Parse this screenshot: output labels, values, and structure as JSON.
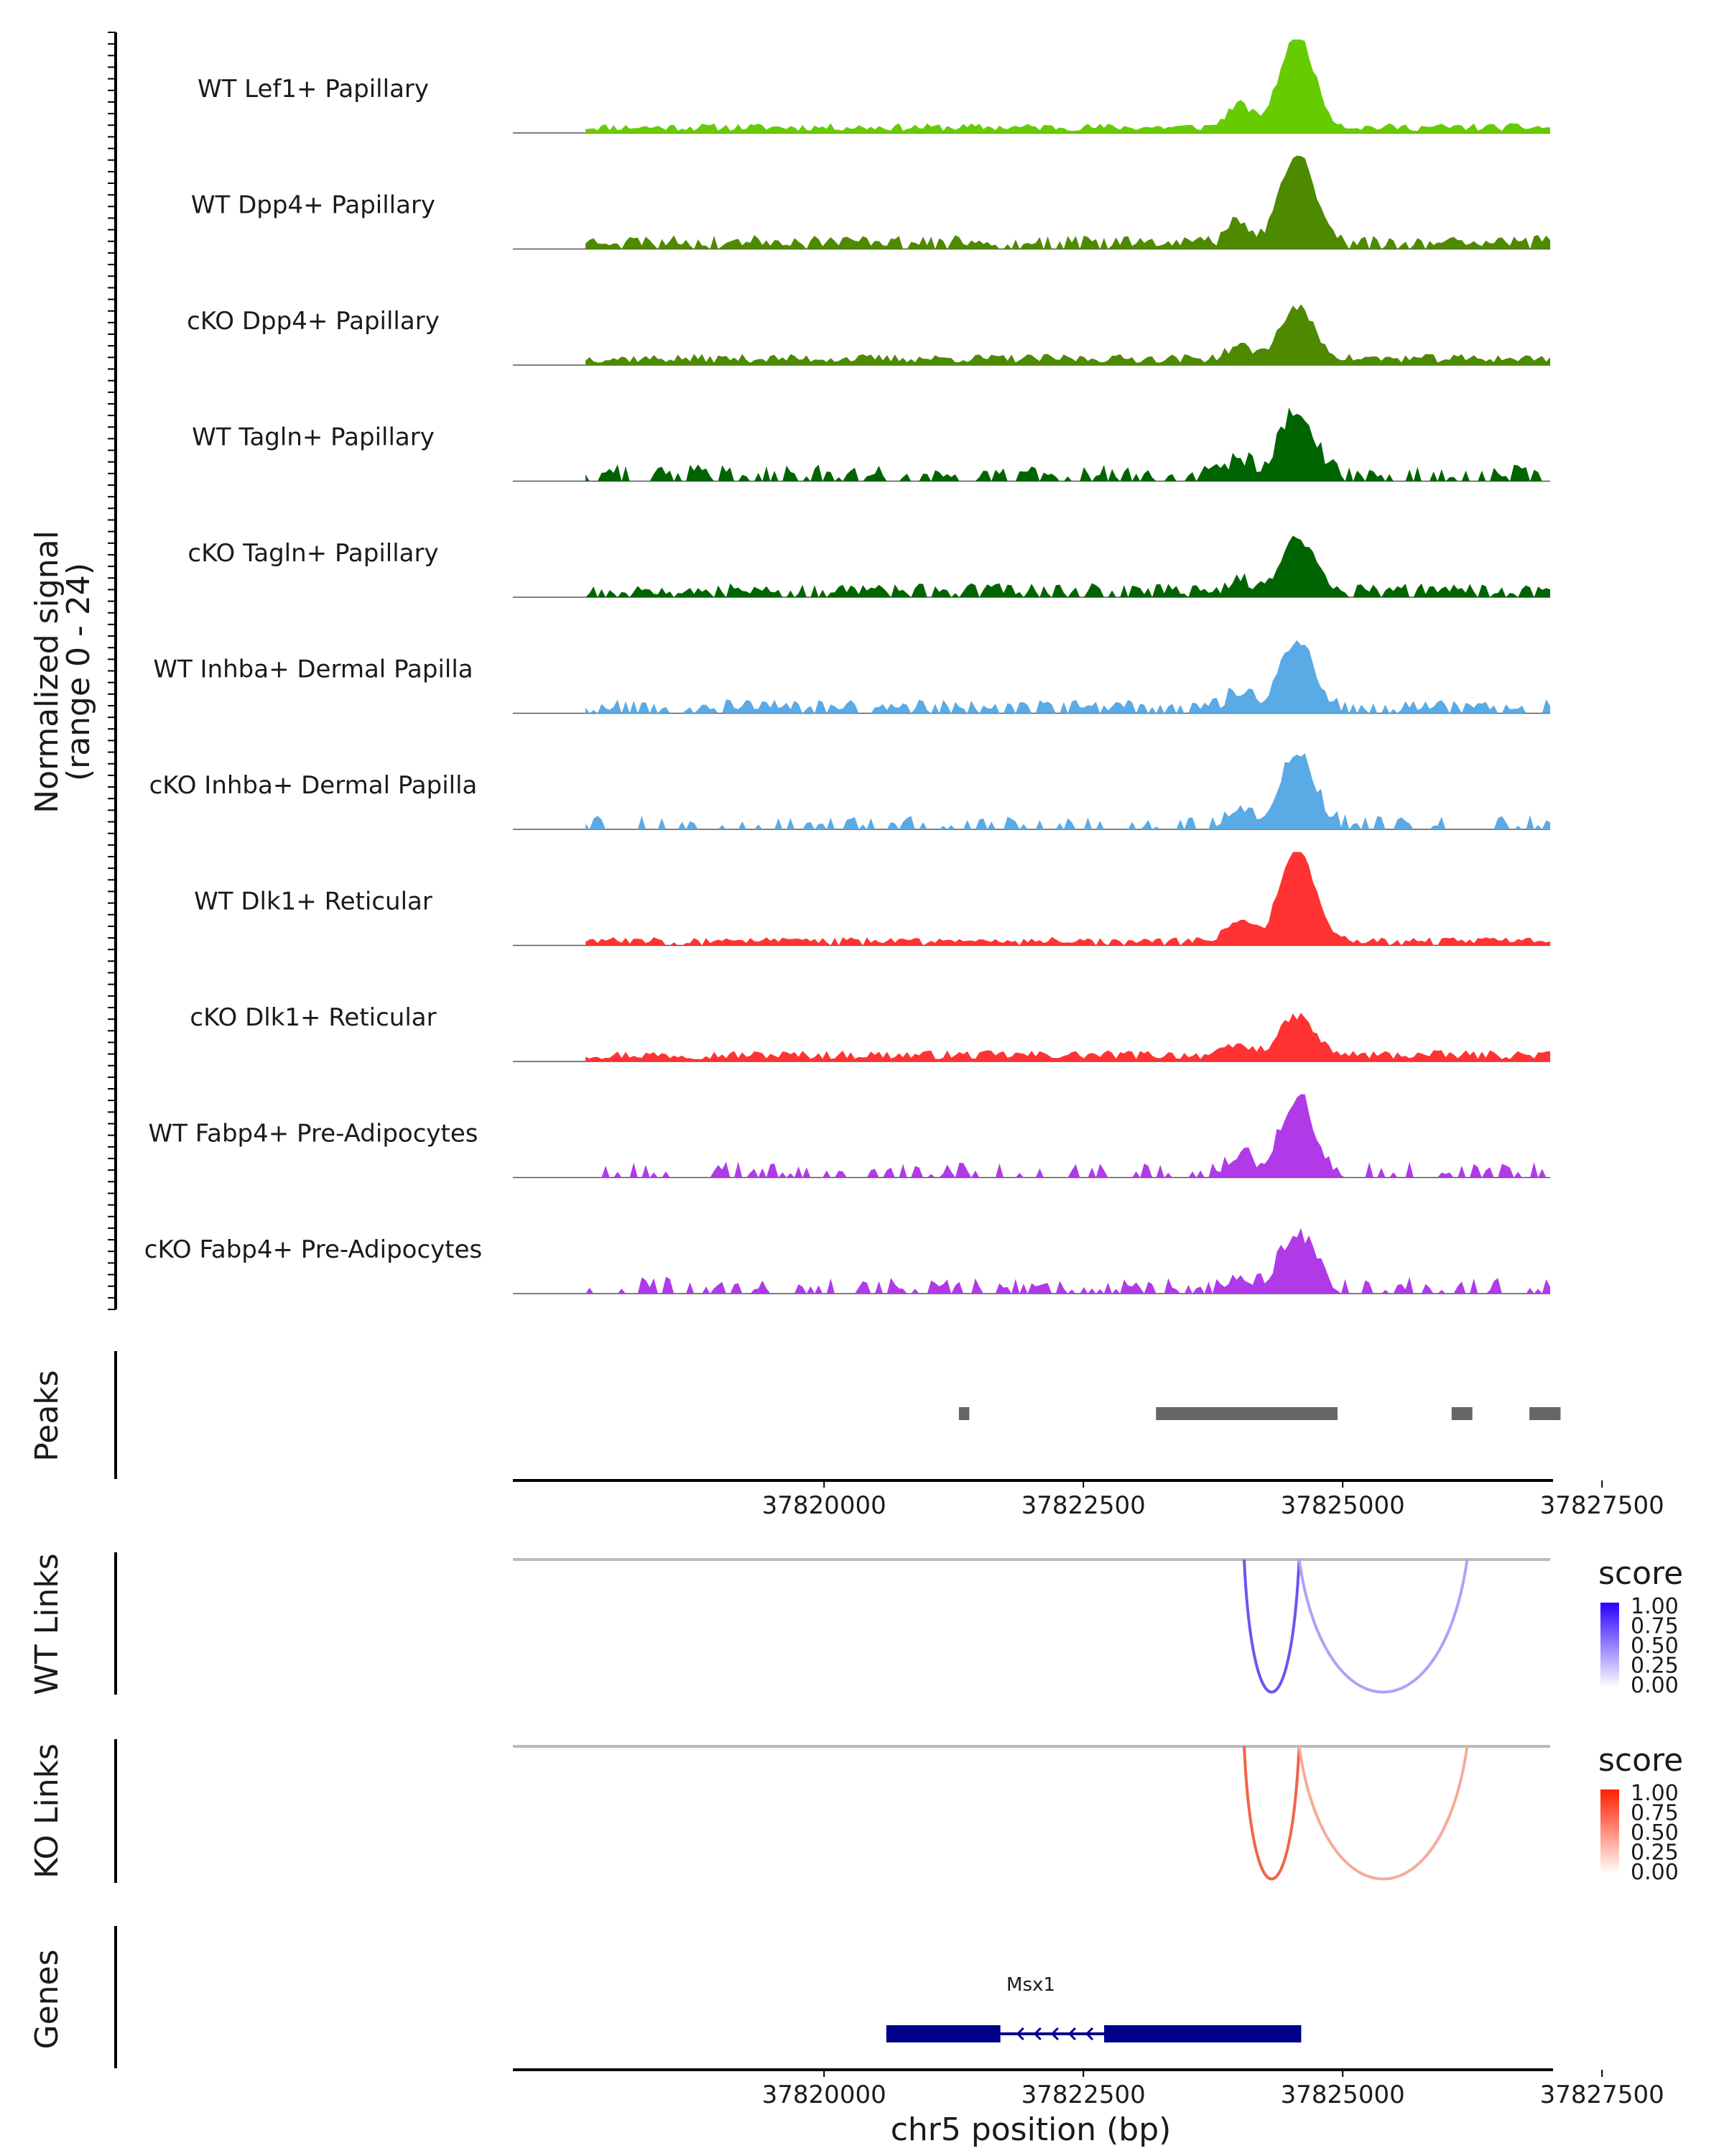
{
  "chart_data": {
    "type": "area",
    "region": "chr5",
    "x_range": [
      37817000,
      37827000
    ],
    "signal_axis_label_line1": "Normalized signal",
    "signal_axis_label_line2": "(range 0 - 24)",
    "y_range": [
      0,
      24
    ],
    "tracks": [
      {
        "name": "WT Lef1+ Papillary",
        "color": "#66cc00",
        "peak": 1.0,
        "base": 0.07,
        "seed": 11,
        "sparse": 0
      },
      {
        "name": "WT Dpp4+ Papillary",
        "color": "#4d8a00",
        "peak": 0.95,
        "base": 0.1,
        "seed": 23,
        "sparse": 0.1
      },
      {
        "name": "cKO Dpp4+ Papillary",
        "color": "#4d8a00",
        "peak": 0.55,
        "base": 0.08,
        "seed": 37,
        "sparse": 0
      },
      {
        "name": "WT Tagln+ Papillary",
        "color": "#006400",
        "peak": 0.72,
        "base": 0.12,
        "seed": 41,
        "sparse": 0.45
      },
      {
        "name": "cKO Tagln+ Papillary",
        "color": "#006400",
        "peak": 0.55,
        "base": 0.1,
        "seed": 53,
        "sparse": 0.2
      },
      {
        "name": "WT Inhba+ Dermal Papilla",
        "color": "#5aaae6",
        "peak": 0.75,
        "base": 0.1,
        "seed": 67,
        "sparse": 0.25
      },
      {
        "name": "cKO Inhba+ Dermal Papilla",
        "color": "#5aaae6",
        "peak": 0.8,
        "base": 0.1,
        "seed": 71,
        "sparse": 0.65
      },
      {
        "name": "WT Dlk1+ Reticular",
        "color": "#ff3333",
        "peak": 1.0,
        "base": 0.06,
        "seed": 83,
        "sparse": 0.05
      },
      {
        "name": "cKO Dlk1+ Reticular",
        "color": "#ff3333",
        "peak": 0.42,
        "base": 0.08,
        "seed": 97,
        "sparse": 0
      },
      {
        "name": "WT Fabp4+ Pre-Adipocytes",
        "color": "#b03ae8",
        "peak": 0.8,
        "base": 0.12,
        "seed": 101,
        "sparse": 0.65
      },
      {
        "name": "cKO Fabp4+ Pre-Adipocytes",
        "color": "#b03ae8",
        "peak": 0.6,
        "base": 0.12,
        "seed": 113,
        "sparse": 0.55
      }
    ],
    "peaks_label": "Peaks",
    "peaks": [
      [
        37821300,
        37821400
      ],
      [
        37823200,
        37824950
      ],
      [
        37826050,
        37826250
      ],
      [
        37826800,
        37827100
      ]
    ],
    "x_ticks": [
      37820000,
      37822500,
      37825000,
      37827500
    ],
    "x_tick_labels": [
      "37820000",
      "37822500",
      "37825000",
      "37827500"
    ],
    "xlabel": "chr5 position (bp)",
    "wt_links_label": "WT Links",
    "ko_links_label": "KO Links",
    "links": [
      {
        "start": 37824050,
        "end": 37824580,
        "score": 0.8
      },
      {
        "start": 37824580,
        "end": 37826200,
        "score": 0.25
      }
    ],
    "wt_link_color": "#5b36f0",
    "ko_link_color": "#ee4c2a",
    "legend_title": "score",
    "legend_ticks": [
      "1.00",
      "0.75",
      "0.50",
      "0.25",
      "0.00"
    ],
    "genes_label": "Genes",
    "gene": {
      "name": "Msx1",
      "start": 37820600,
      "end": 37824600,
      "strand": "-",
      "exons": [
        [
          37820600,
          37821700
        ],
        [
          37822700,
          37824600
        ]
      ],
      "color": "#00008b"
    }
  }
}
